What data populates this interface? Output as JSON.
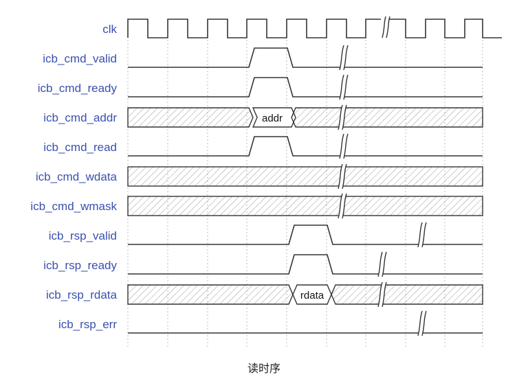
{
  "caption": "读时序",
  "signals": [
    {
      "name": "clk"
    },
    {
      "name": "icb_cmd_valid"
    },
    {
      "name": "icb_cmd_ready"
    },
    {
      "name": "icb_cmd_addr",
      "bus_value": "addr"
    },
    {
      "name": "icb_cmd_read"
    },
    {
      "name": "icb_cmd_wdata"
    },
    {
      "name": "icb_cmd_wmask"
    },
    {
      "name": "icb_rsp_valid"
    },
    {
      "name": "icb_rsp_ready"
    },
    {
      "name": "icb_rsp_rdata",
      "bus_value": "rdata"
    },
    {
      "name": "icb_rsp_err"
    }
  ],
  "colors": {
    "label": "#3a4fb0",
    "wave": "#333333",
    "hatch": "#888888",
    "grid": "#bbbbbb"
  }
}
